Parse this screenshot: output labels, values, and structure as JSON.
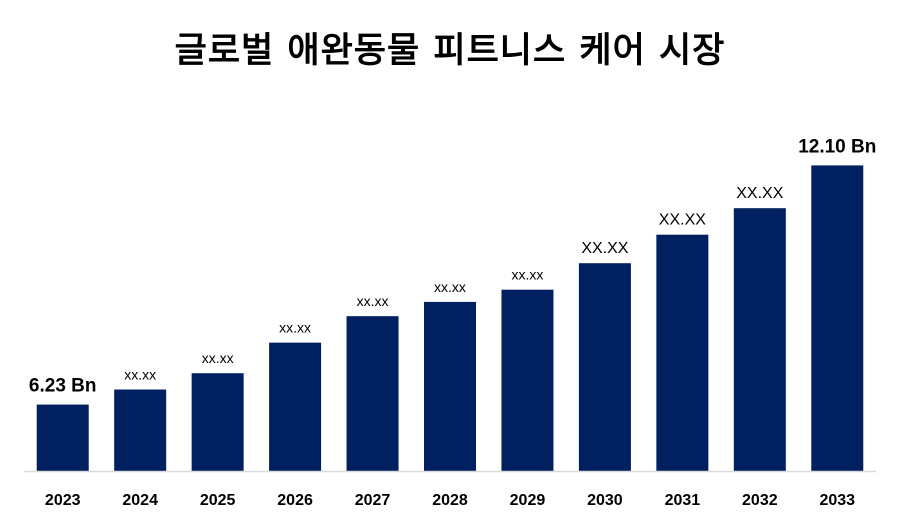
{
  "chart_data": {
    "type": "bar",
    "title": "글로벌 애완동물 피트니스 케어 시장",
    "xlabel": "",
    "ylabel": "",
    "categories": [
      "2023",
      "2024",
      "2025",
      "2026",
      "2027",
      "2028",
      "2029",
      "2030",
      "2031",
      "2032",
      "2033"
    ],
    "values": [
      6.23,
      6.6,
      7.0,
      7.75,
      8.4,
      8.75,
      9.05,
      9.7,
      10.4,
      11.05,
      12.1
    ],
    "data_labels": [
      "6.23 Bn",
      "xx.xx",
      "xx.xx",
      "xx.xx",
      "xx.xx",
      "xx.xx",
      "xx.xx",
      "XX.XX",
      "XX.XX",
      "XX.XX",
      "12.10 Bn"
    ],
    "ylim": [
      4.6,
      12.65
    ],
    "grid": false,
    "legend": "none",
    "colors": {
      "bar": "#002060",
      "axis": "#d9d9d9",
      "text": "#000000"
    }
  }
}
